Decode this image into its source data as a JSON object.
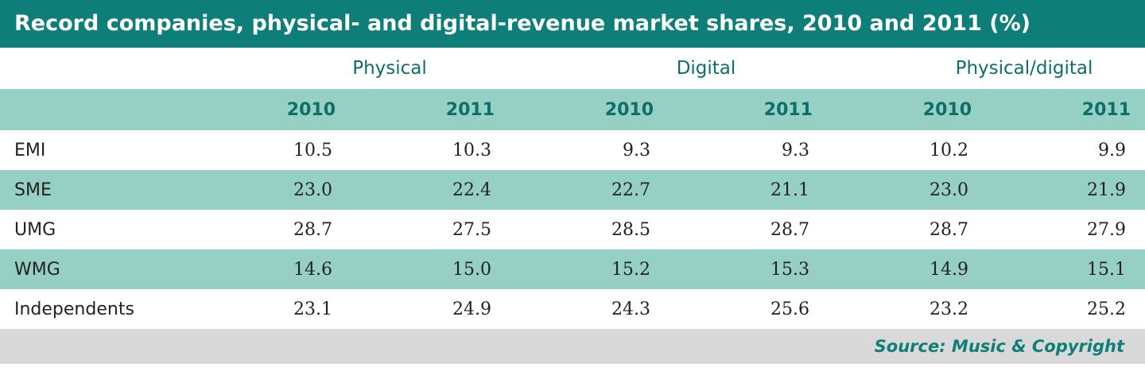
{
  "title": "Record companies, physical- and digital-revenue market shares, 2010 and 2011 (%)",
  "groups": [
    "Physical",
    "Digital",
    "Physical/digital"
  ],
  "years": [
    "2010",
    "2011",
    "2010",
    "2011",
    "2010",
    "2011"
  ],
  "source": "Source: Music & Copyright",
  "chart_data": {
    "type": "table",
    "title": "Record companies, physical- and digital-revenue market shares, 2010 and 2011 (%)",
    "column_groups": [
      "Physical",
      "Digital",
      "Physical/digital"
    ],
    "columns": [
      "2010",
      "2011",
      "2010",
      "2011",
      "2010",
      "2011"
    ],
    "rows": [
      {
        "label": "EMI",
        "values": [
          "10.5",
          "10.3",
          "9.3",
          "9.3",
          "10.2",
          "9.9"
        ]
      },
      {
        "label": "SME",
        "values": [
          "23.0",
          "22.4",
          "22.7",
          "21.1",
          "23.0",
          "21.9"
        ]
      },
      {
        "label": "UMG",
        "values": [
          "28.7",
          "27.5",
          "28.5",
          "28.7",
          "28.7",
          "27.9"
        ]
      },
      {
        "label": "WMG",
        "values": [
          "14.6",
          "15.0",
          "15.2",
          "15.3",
          "14.9",
          "15.1"
        ]
      },
      {
        "label": "Independents",
        "values": [
          "23.1",
          "24.9",
          "24.3",
          "25.6",
          "23.2",
          "25.2"
        ]
      }
    ],
    "source": "Source: Music & Copyright"
  }
}
